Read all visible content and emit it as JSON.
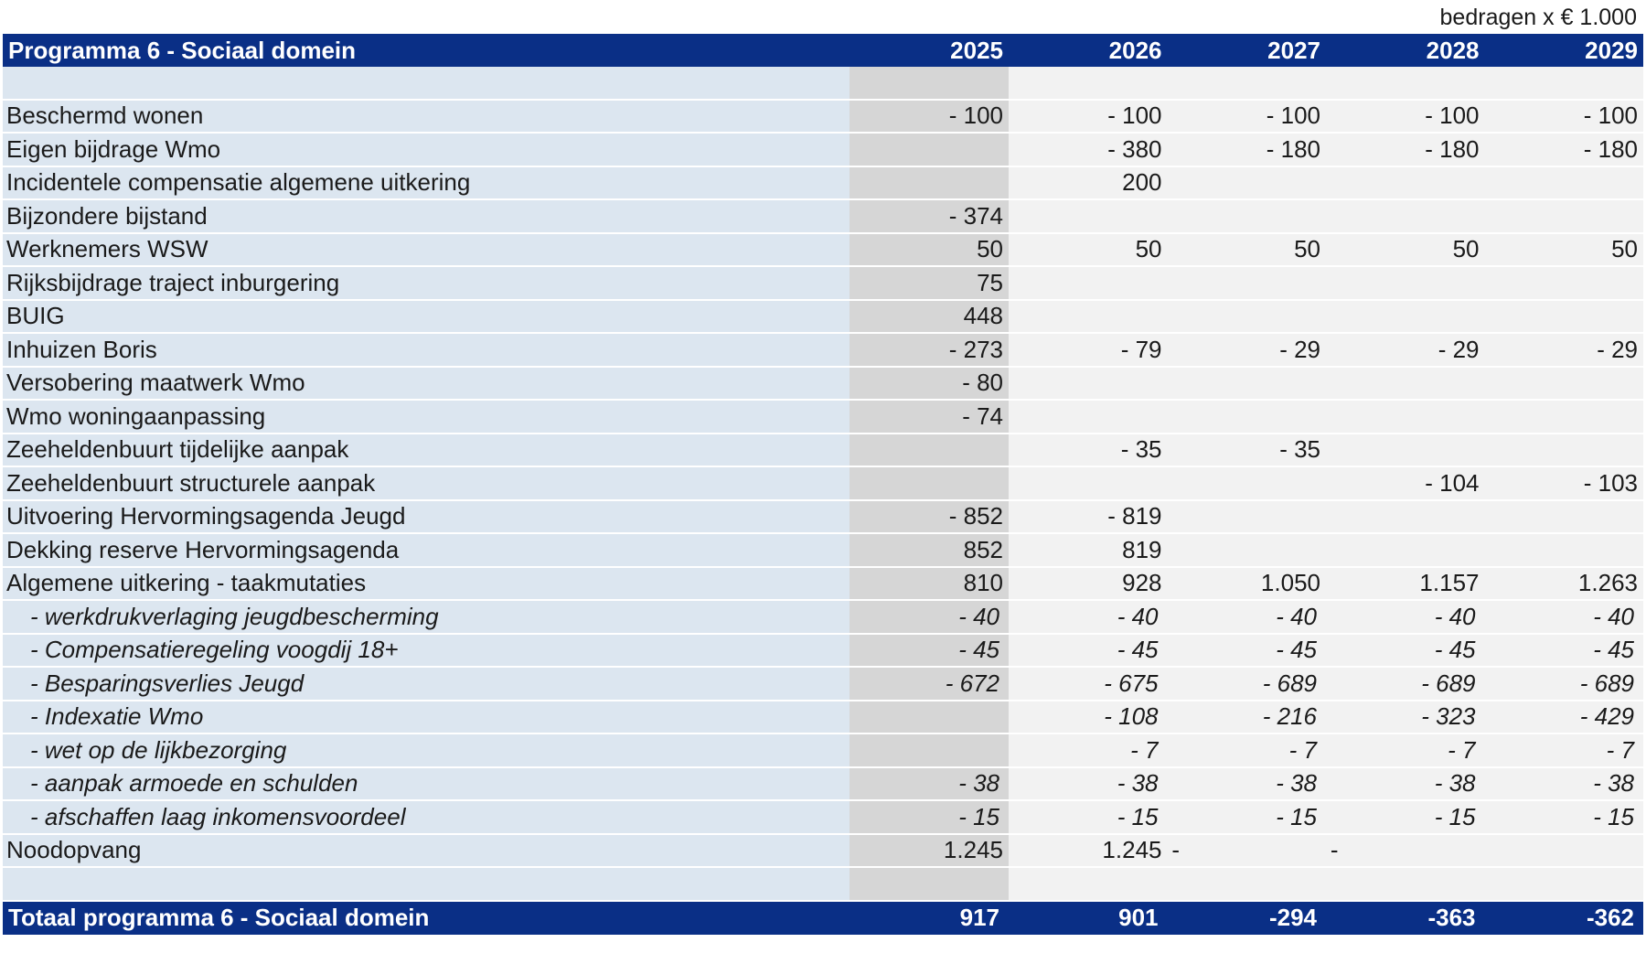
{
  "unit_note": "bedragen x € 1.000",
  "header": {
    "title": "Programma 6 - Sociaal domein",
    "years": [
      "2025",
      "2026",
      "2027",
      "2028",
      "2029"
    ]
  },
  "rows": [
    {
      "label": "Beschermd wonen",
      "values": [
        "- 100",
        "- 100",
        "- 100",
        "- 100",
        "- 100"
      ],
      "sub": false
    },
    {
      "label": "Eigen bijdrage Wmo",
      "values": [
        "",
        "- 380",
        "- 180",
        "- 180",
        "- 180"
      ],
      "sub": false
    },
    {
      "label": "Incidentele compensatie algemene uitkering",
      "values": [
        "",
        "200",
        "",
        "",
        ""
      ],
      "sub": false
    },
    {
      "label": "Bijzondere bijstand",
      "values": [
        "- 374",
        "",
        "",
        "",
        ""
      ],
      "sub": false
    },
    {
      "label": "Werknemers WSW",
      "values": [
        "50",
        "50",
        "50",
        "50",
        "50"
      ],
      "sub": false
    },
    {
      "label": "Rijksbijdrage traject inburgering",
      "values": [
        "75",
        "",
        "",
        "",
        ""
      ],
      "sub": false
    },
    {
      "label": "BUIG",
      "values": [
        "448",
        "",
        "",
        "",
        ""
      ],
      "sub": false
    },
    {
      "label": "Inhuizen Boris",
      "values": [
        "- 273",
        "- 79",
        "- 29",
        "- 29",
        "- 29"
      ],
      "sub": false
    },
    {
      "label": "Versobering maatwerk Wmo",
      "values": [
        "- 80",
        "",
        "",
        "",
        ""
      ],
      "sub": false
    },
    {
      "label": "Wmo woningaanpassing",
      "values": [
        "- 74",
        "",
        "",
        "",
        ""
      ],
      "sub": false
    },
    {
      "label": "Zeeheldenbuurt tijdelijke aanpak",
      "values": [
        "",
        "- 35",
        "- 35",
        "",
        ""
      ],
      "sub": false
    },
    {
      "label": "Zeeheldenbuurt structurele aanpak",
      "values": [
        "",
        "",
        "",
        "- 104",
        "- 103"
      ],
      "sub": false
    },
    {
      "label": "Uitvoering Hervormingsagenda Jeugd",
      "values": [
        "- 852",
        "- 819",
        "",
        "",
        ""
      ],
      "sub": false
    },
    {
      "label": "Dekking reserve Hervormingsagenda",
      "values": [
        "852",
        "819",
        "",
        "",
        ""
      ],
      "sub": false
    },
    {
      "label": "Algemene uitkering - taakmutaties",
      "values": [
        "810",
        "928",
        "1.050",
        "1.157",
        "1.263"
      ],
      "sub": false
    },
    {
      "label": "- werkdrukverlaging jeugdbescherming",
      "values": [
        "- 40",
        "- 40",
        "- 40",
        "- 40",
        "- 40"
      ],
      "sub": true
    },
    {
      "label": "- Compensatieregeling voogdij 18+",
      "values": [
        "- 45",
        "- 45",
        "- 45",
        "- 45",
        "- 45"
      ],
      "sub": true
    },
    {
      "label": "- Besparingsverlies Jeugd",
      "values": [
        "- 672",
        "- 675",
        "- 689",
        "- 689",
        "- 689"
      ],
      "sub": true
    },
    {
      "label": "- Indexatie Wmo",
      "values": [
        "",
        "- 108",
        "- 216",
        "- 323",
        "- 429"
      ],
      "sub": true
    },
    {
      "label": "- wet op de lijkbezorging",
      "values": [
        "",
        "- 7",
        "- 7",
        "- 7",
        "- 7"
      ],
      "sub": true
    },
    {
      "label": "- aanpak armoede en schulden",
      "values": [
        "- 38",
        "- 38",
        "- 38",
        "- 38",
        "- 38"
      ],
      "sub": true
    },
    {
      "label": "- afschaffen laag inkomensvoordeel",
      "values": [
        "- 15",
        "- 15",
        "- 15",
        "- 15",
        "- 15"
      ],
      "sub": true
    },
    {
      "label": "Noodopvang",
      "values": [
        "1.245",
        "1.245",
        "-",
        "-",
        ""
      ],
      "sub": false
    }
  ],
  "total": {
    "label": "Totaal programma 6 - Sociaal domein",
    "values": [
      "917",
      "901",
      "-294",
      "-363",
      "-362"
    ]
  }
}
